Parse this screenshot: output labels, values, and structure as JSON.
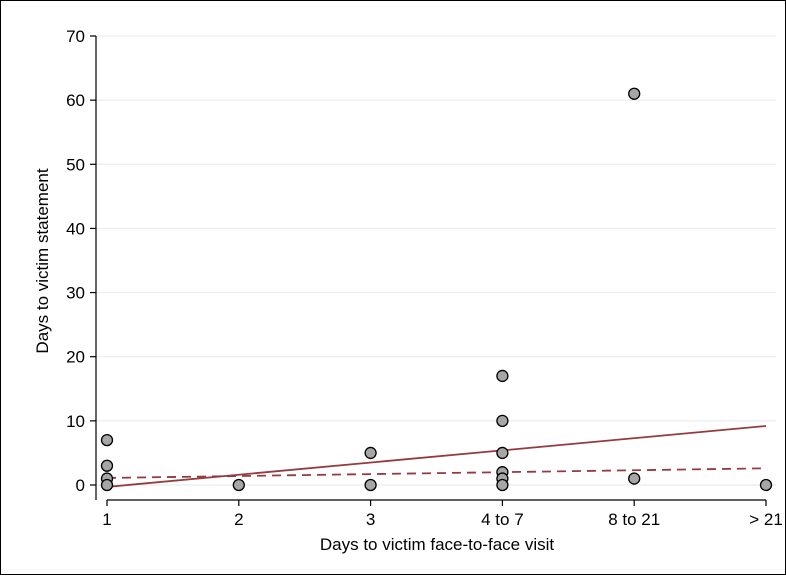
{
  "chart_data": {
    "type": "scatter",
    "xlabel": "Days to victim face-to-face visit",
    "ylabel": "Days to victim statement",
    "categories": [
      "1",
      "2",
      "3",
      "4 to 7",
      "8 to 21",
      "> 21"
    ],
    "yticks": [
      0,
      10,
      20,
      30,
      40,
      50,
      60,
      70
    ],
    "ylim": [
      0,
      70
    ],
    "grid": true,
    "points": [
      {
        "x": "1",
        "y": 7
      },
      {
        "x": "1",
        "y": 3
      },
      {
        "x": "1",
        "y": 1
      },
      {
        "x": "1",
        "y": 0
      },
      {
        "x": "2",
        "y": 0
      },
      {
        "x": "3",
        "y": 5
      },
      {
        "x": "3",
        "y": 0
      },
      {
        "x": "4 to 7",
        "y": 17
      },
      {
        "x": "4 to 7",
        "y": 10
      },
      {
        "x": "4 to 7",
        "y": 5
      },
      {
        "x": "4 to 7",
        "y": 2
      },
      {
        "x": "4 to 7",
        "y": 1
      },
      {
        "x": "4 to 7",
        "y": 0
      },
      {
        "x": "8 to 21",
        "y": 61
      },
      {
        "x": "8 to 21",
        "y": 1
      },
      {
        "x": "> 21",
        "y": 0
      }
    ],
    "fit_lines": [
      {
        "style": "solid",
        "start": {
          "x": "1",
          "y": -0.3
        },
        "end": {
          "x": "> 21",
          "y": 9.2
        }
      },
      {
        "style": "dashed",
        "start": {
          "x": "1",
          "y": 1.1
        },
        "end": {
          "x": "> 21",
          "y": 2.6
        }
      }
    ],
    "colors": {
      "marker_fill": "#a6a6a6",
      "marker_stroke": "#000000",
      "fit_line": "#953a3e",
      "grid": "#e8eef2",
      "axis": "#000000"
    }
  }
}
